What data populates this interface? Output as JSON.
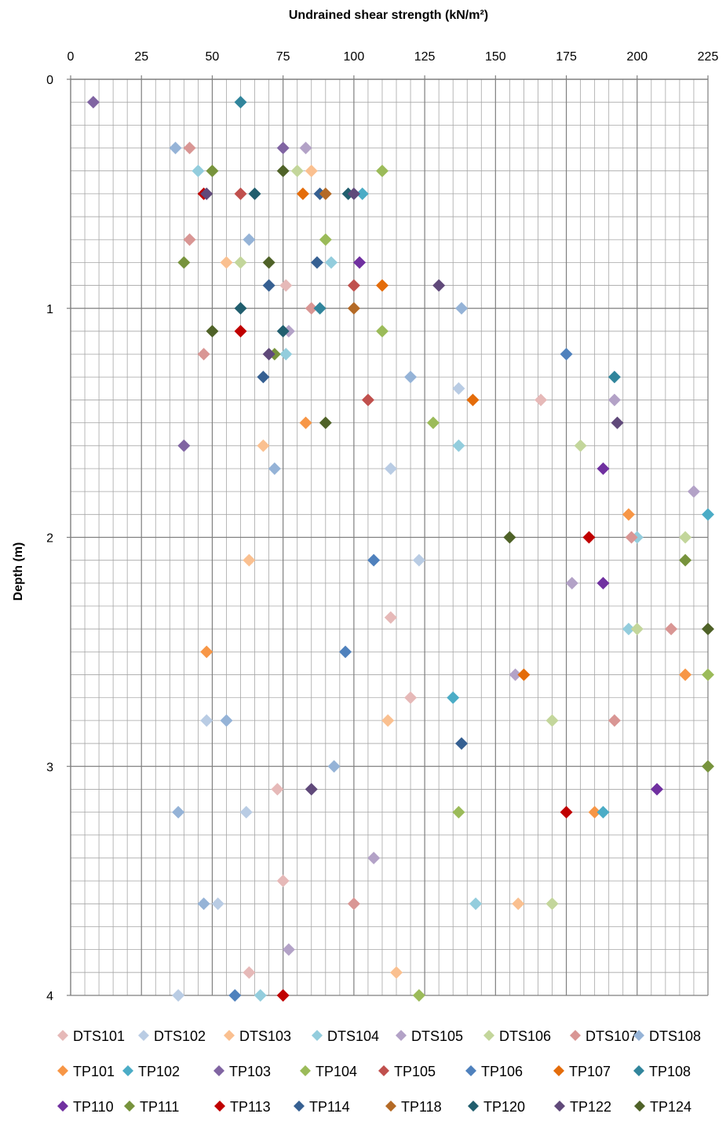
{
  "chart_data": {
    "type": "scatter",
    "title": "Undrained shear strength (kN/m²)",
    "xlabel": "Undrained shear strength (kN/m²)",
    "ylabel": "Depth (m)",
    "xlim": [
      0,
      225
    ],
    "ylim": [
      0,
      4
    ],
    "y_reversed": true,
    "x_axis_position": "top",
    "x_ticks": [
      "0",
      "25",
      "50",
      "75",
      "100",
      "125",
      "150",
      "175",
      "200",
      "225"
    ],
    "y_ticks": [
      "0",
      "1",
      "2",
      "3",
      "4"
    ],
    "grid": {
      "major": true,
      "minor": true
    },
    "legend_position": "bottom",
    "marker": "diamond",
    "series": [
      {
        "name": "DTS101",
        "color": "#e6b9b8",
        "points": [
          [
            76,
            0.9
          ],
          [
            166,
            1.4
          ],
          [
            113,
            2.35
          ],
          [
            120,
            2.7
          ],
          [
            73,
            3.1
          ],
          [
            75,
            3.5
          ],
          [
            63,
            3.9
          ]
        ]
      },
      {
        "name": "DTS102",
        "color": "#b9cce4",
        "points": [
          [
            137,
            1.35
          ],
          [
            113,
            1.7
          ],
          [
            123,
            2.1
          ],
          [
            48,
            2.8
          ],
          [
            62,
            3.2
          ],
          [
            52,
            3.6
          ],
          [
            38,
            4.0
          ]
        ]
      },
      {
        "name": "DTS103",
        "color": "#fac090",
        "points": [
          [
            85,
            0.4
          ],
          [
            55,
            0.8
          ],
          [
            68,
            1.6
          ],
          [
            63,
            2.1
          ],
          [
            112,
            2.8
          ],
          [
            158,
            3.6
          ],
          [
            115,
            3.9
          ]
        ]
      },
      {
        "name": "DTS104",
        "color": "#93cddd",
        "points": [
          [
            45,
            0.4
          ],
          [
            92,
            0.8
          ],
          [
            76,
            1.2
          ],
          [
            137,
            1.6
          ],
          [
            200,
            2.0
          ],
          [
            197,
            2.4
          ],
          [
            143,
            3.6
          ],
          [
            67,
            4.0
          ]
        ]
      },
      {
        "name": "DTS105",
        "color": "#b3a2c7",
        "points": [
          [
            83,
            0.3
          ],
          [
            77,
            1.1
          ],
          [
            192,
            1.4
          ],
          [
            220,
            1.8
          ],
          [
            177,
            2.2
          ],
          [
            157,
            2.6
          ],
          [
            107,
            3.4
          ],
          [
            77,
            3.8
          ]
        ]
      },
      {
        "name": "DTS106",
        "color": "#c3d69b",
        "points": [
          [
            80,
            0.4
          ],
          [
            60,
            0.8
          ],
          [
            180,
            1.6
          ],
          [
            217,
            2.0
          ],
          [
            200,
            2.4
          ],
          [
            170,
            2.8
          ],
          [
            170,
            3.6
          ]
        ]
      },
      {
        "name": "DTS107",
        "color": "#d99694",
        "points": [
          [
            42,
            0.3
          ],
          [
            42,
            0.7
          ],
          [
            85,
            1.0
          ],
          [
            47,
            1.2
          ],
          [
            198,
            2.0
          ],
          [
            212,
            2.4
          ],
          [
            192,
            2.8
          ],
          [
            100,
            3.6
          ]
        ]
      },
      {
        "name": "DTS108",
        "color": "#95b3d7",
        "points": [
          [
            37,
            0.3
          ],
          [
            63,
            0.7
          ],
          [
            138,
            1.0
          ],
          [
            120,
            1.3
          ],
          [
            72,
            1.7
          ],
          [
            55,
            2.8
          ],
          [
            93,
            3.0
          ],
          [
            38,
            3.2
          ],
          [
            47,
            3.6
          ]
        ]
      },
      {
        "name": "TP101",
        "color": "#f79646",
        "points": [
          [
            83,
            1.5
          ],
          [
            197,
            1.9
          ],
          [
            48,
            2.5
          ],
          [
            217,
            2.6
          ],
          [
            185,
            3.2
          ]
        ]
      },
      {
        "name": "TP102",
        "color": "#4bacc6",
        "points": [
          [
            103,
            0.5
          ],
          [
            225,
            1.9
          ],
          [
            135,
            2.7
          ],
          [
            188,
            3.2
          ]
        ]
      },
      {
        "name": "TP103",
        "color": "#8064a2",
        "points": [
          [
            8,
            0.1
          ],
          [
            75,
            0.3
          ],
          [
            40,
            1.6
          ]
        ]
      },
      {
        "name": "TP104",
        "color": "#9bbb59",
        "points": [
          [
            110,
            0.4
          ],
          [
            90,
            0.7
          ],
          [
            110,
            1.1
          ],
          [
            128,
            1.5
          ],
          [
            225,
            2.6
          ],
          [
            137,
            3.2
          ],
          [
            123,
            4.0
          ]
        ]
      },
      {
        "name": "TP105",
        "color": "#c0504d",
        "points": [
          [
            60,
            0.5
          ],
          [
            100,
            0.9
          ],
          [
            105,
            1.4
          ]
        ]
      },
      {
        "name": "TP106",
        "color": "#4f81bd",
        "points": [
          [
            175,
            1.2
          ],
          [
            107,
            2.1
          ],
          [
            97,
            2.5
          ],
          [
            58,
            4.0
          ]
        ]
      },
      {
        "name": "TP107",
        "color": "#e46c0a",
        "points": [
          [
            82,
            0.5
          ],
          [
            110,
            0.9
          ],
          [
            142,
            1.4
          ],
          [
            160,
            2.6
          ]
        ]
      },
      {
        "name": "TP108",
        "color": "#31859c",
        "points": [
          [
            60,
            0.1
          ],
          [
            88,
            1.0
          ],
          [
            192,
            1.3
          ]
        ]
      },
      {
        "name": "TP110",
        "color": "#7030a0",
        "points": [
          [
            102,
            0.8
          ],
          [
            188,
            1.7
          ],
          [
            188,
            2.2
          ],
          [
            207,
            3.1
          ]
        ]
      },
      {
        "name": "TP111",
        "color": "#77933c",
        "points": [
          [
            50,
            0.4
          ],
          [
            40,
            0.8
          ],
          [
            72,
            1.2
          ],
          [
            217,
            2.1
          ],
          [
            225,
            3.0
          ]
        ]
      },
      {
        "name": "TP113",
        "color": "#c00000",
        "points": [
          [
            47,
            0.5
          ],
          [
            60,
            1.1
          ],
          [
            183,
            2.0
          ],
          [
            175,
            3.2
          ],
          [
            75,
            4.0
          ]
        ]
      },
      {
        "name": "TP114",
        "color": "#366092",
        "points": [
          [
            88,
            0.5
          ],
          [
            87,
            0.8
          ],
          [
            70,
            0.9
          ],
          [
            68,
            1.3
          ],
          [
            138,
            2.9
          ]
        ]
      },
      {
        "name": "TP118",
        "color": "#b46a26",
        "points": [
          [
            90,
            0.5
          ],
          [
            100,
            1.0
          ]
        ]
      },
      {
        "name": "TP120",
        "color": "#215e6e",
        "points": [
          [
            65,
            0.5
          ],
          [
            98,
            0.5
          ],
          [
            60,
            1.0
          ],
          [
            75,
            1.1
          ]
        ]
      },
      {
        "name": "TP122",
        "color": "#60497a",
        "points": [
          [
            48,
            0.5
          ],
          [
            100,
            0.5
          ],
          [
            130,
            0.9
          ],
          [
            70,
            1.2
          ],
          [
            193,
            1.5
          ],
          [
            85,
            3.1
          ]
        ]
      },
      {
        "name": "TP124",
        "color": "#4f6228",
        "points": [
          [
            75,
            0.4
          ],
          [
            70,
            0.8
          ],
          [
            50,
            1.1
          ],
          [
            90,
            1.5
          ],
          [
            155,
            2.0
          ],
          [
            225,
            2.4
          ]
        ]
      }
    ]
  }
}
